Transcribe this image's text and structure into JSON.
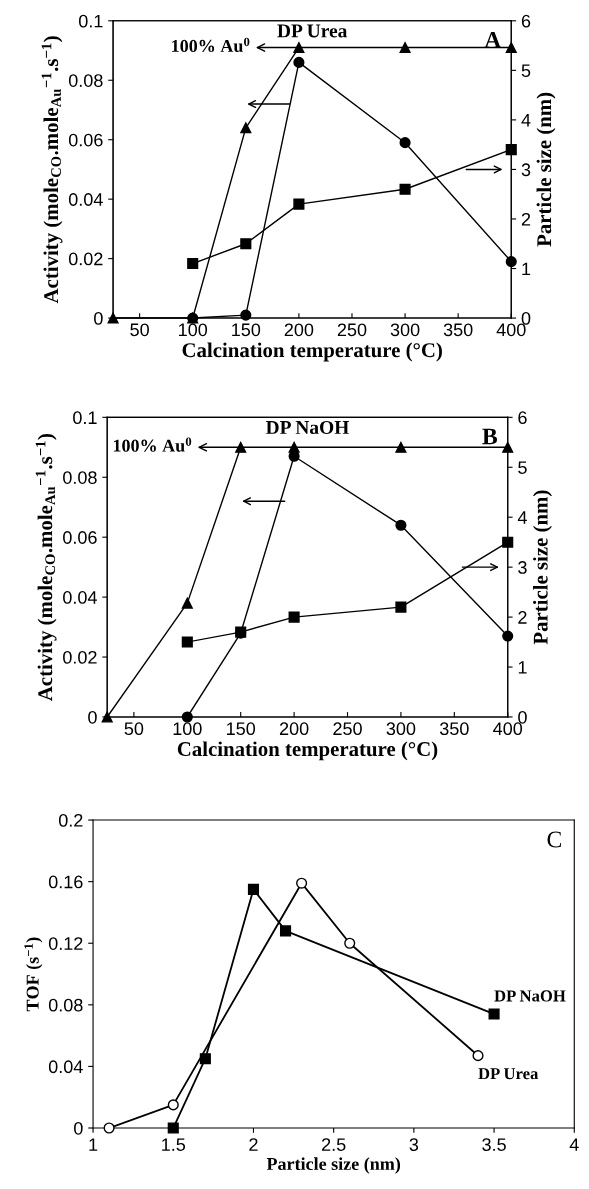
{
  "chart_data": [
    {
      "type": "line",
      "title": "DP Urea",
      "xlabel": "Calcination temperature (°C)",
      "ylabel": "Activity (mole$_{CO}$.mole$_{Au}$$^{−1}$.s$^{−1}$)",
      "y2label": "Particle size (nm)",
      "annotations": [
        {
          "text": "100% Au$^{0}$",
          "x": 200,
          "y": 0.091
        },
        "A"
      ],
      "series": [
        {
          "x": [
            25,
            100,
            150,
            200,
            300,
            400
          ],
          "values": [
            0,
            0,
            0.064,
            0.091,
            0.091,
            0.091
          ],
          "color": "#000000",
          "marker": "triangle"
        },
        {
          "x": [
            100,
            150,
            200,
            300,
            400
          ],
          "values": [
            0,
            0.001,
            0.086,
            0.059,
            0.019
          ],
          "color": "#000000",
          "marker": "circle"
        },
        {
          "x": [
            100,
            150,
            200,
            300,
            400
          ],
          "values": [
            1.1,
            1.5,
            2.3,
            2.6,
            3.4
          ],
          "color": "#000000",
          "marker": "square",
          "axis": "y2"
        }
      ],
      "xlim": [
        25,
        400
      ],
      "xticks": [
        50,
        100,
        150,
        200,
        250,
        300,
        350,
        400
      ],
      "ylim": [
        0,
        0.1
      ],
      "yticks": [
        0,
        0.02,
        0.04,
        0.06,
        0.08,
        0.1
      ],
      "y2lim": [
        0,
        6
      ],
      "y2ticks": [
        0,
        1,
        2,
        3,
        4,
        5,
        6
      ],
      "grid": false,
      "legend": false
    },
    {
      "type": "line",
      "title": "DP NaOH",
      "xlabel": "Calcination temperature (°C)",
      "ylabel": "Activity (mole$_{CO}$.mole$_{Au}$$^{−1}$.s$^{−1}$)",
      "y2label": "Particle size (nm)",
      "annotations": [
        {
          "text": "100% Au$^{0}$",
          "x": 150,
          "y": 0.09
        },
        "B"
      ],
      "series": [
        {
          "x": [
            25,
            100,
            150,
            200,
            300,
            400
          ],
          "values": [
            0,
            0.038,
            0.09,
            0.09,
            0.09,
            0.09
          ],
          "color": "#000000",
          "marker": "triangle"
        },
        {
          "x": [
            100,
            150,
            200,
            300,
            400
          ],
          "values": [
            0,
            0.028,
            0.087,
            0.064,
            0.027
          ],
          "color": "#000000",
          "marker": "circle"
        },
        {
          "x": [
            100,
            150,
            200,
            300,
            400
          ],
          "values": [
            1.5,
            1.7,
            2.0,
            2.2,
            3.5
          ],
          "color": "#000000",
          "marker": "square",
          "axis": "y2"
        }
      ],
      "xlim": [
        25,
        400
      ],
      "xticks": [
        50,
        100,
        150,
        200,
        250,
        300,
        350,
        400
      ],
      "ylim": [
        0,
        0.1
      ],
      "yticks": [
        0,
        0.02,
        0.04,
        0.06,
        0.08,
        0.1
      ],
      "y2lim": [
        0,
        6
      ],
      "y2ticks": [
        0,
        1,
        2,
        3,
        4,
        5,
        6
      ],
      "grid": false,
      "legend": false
    },
    {
      "type": "line",
      "xlabel": "Particle size (nm)",
      "ylabel": "TOF (s$^{−1}$)",
      "annotations": [
        "C"
      ],
      "series": [
        {
          "name": "DP NaOH",
          "x": [
            1.5,
            1.7,
            2.0,
            2.2,
            3.5
          ],
          "values": [
            0,
            0.045,
            0.155,
            0.128,
            0.074
          ],
          "color": "#000000",
          "marker": "square"
        },
        {
          "name": "DP Urea",
          "x": [
            1.1,
            1.5,
            2.3,
            2.6,
            3.4
          ],
          "values": [
            0,
            0.015,
            0.159,
            0.12,
            0.047
          ],
          "color": "#000000",
          "marker": "circle"
        }
      ],
      "xlim": [
        1,
        4
      ],
      "xticks": [
        1,
        1.5,
        2,
        2.5,
        3,
        3.5,
        4
      ],
      "ylim": [
        0,
        0.2
      ],
      "yticks": [
        0,
        0.04,
        0.08,
        0.12,
        0.16,
        0.2
      ],
      "grid": false,
      "legend": false
    }
  ]
}
